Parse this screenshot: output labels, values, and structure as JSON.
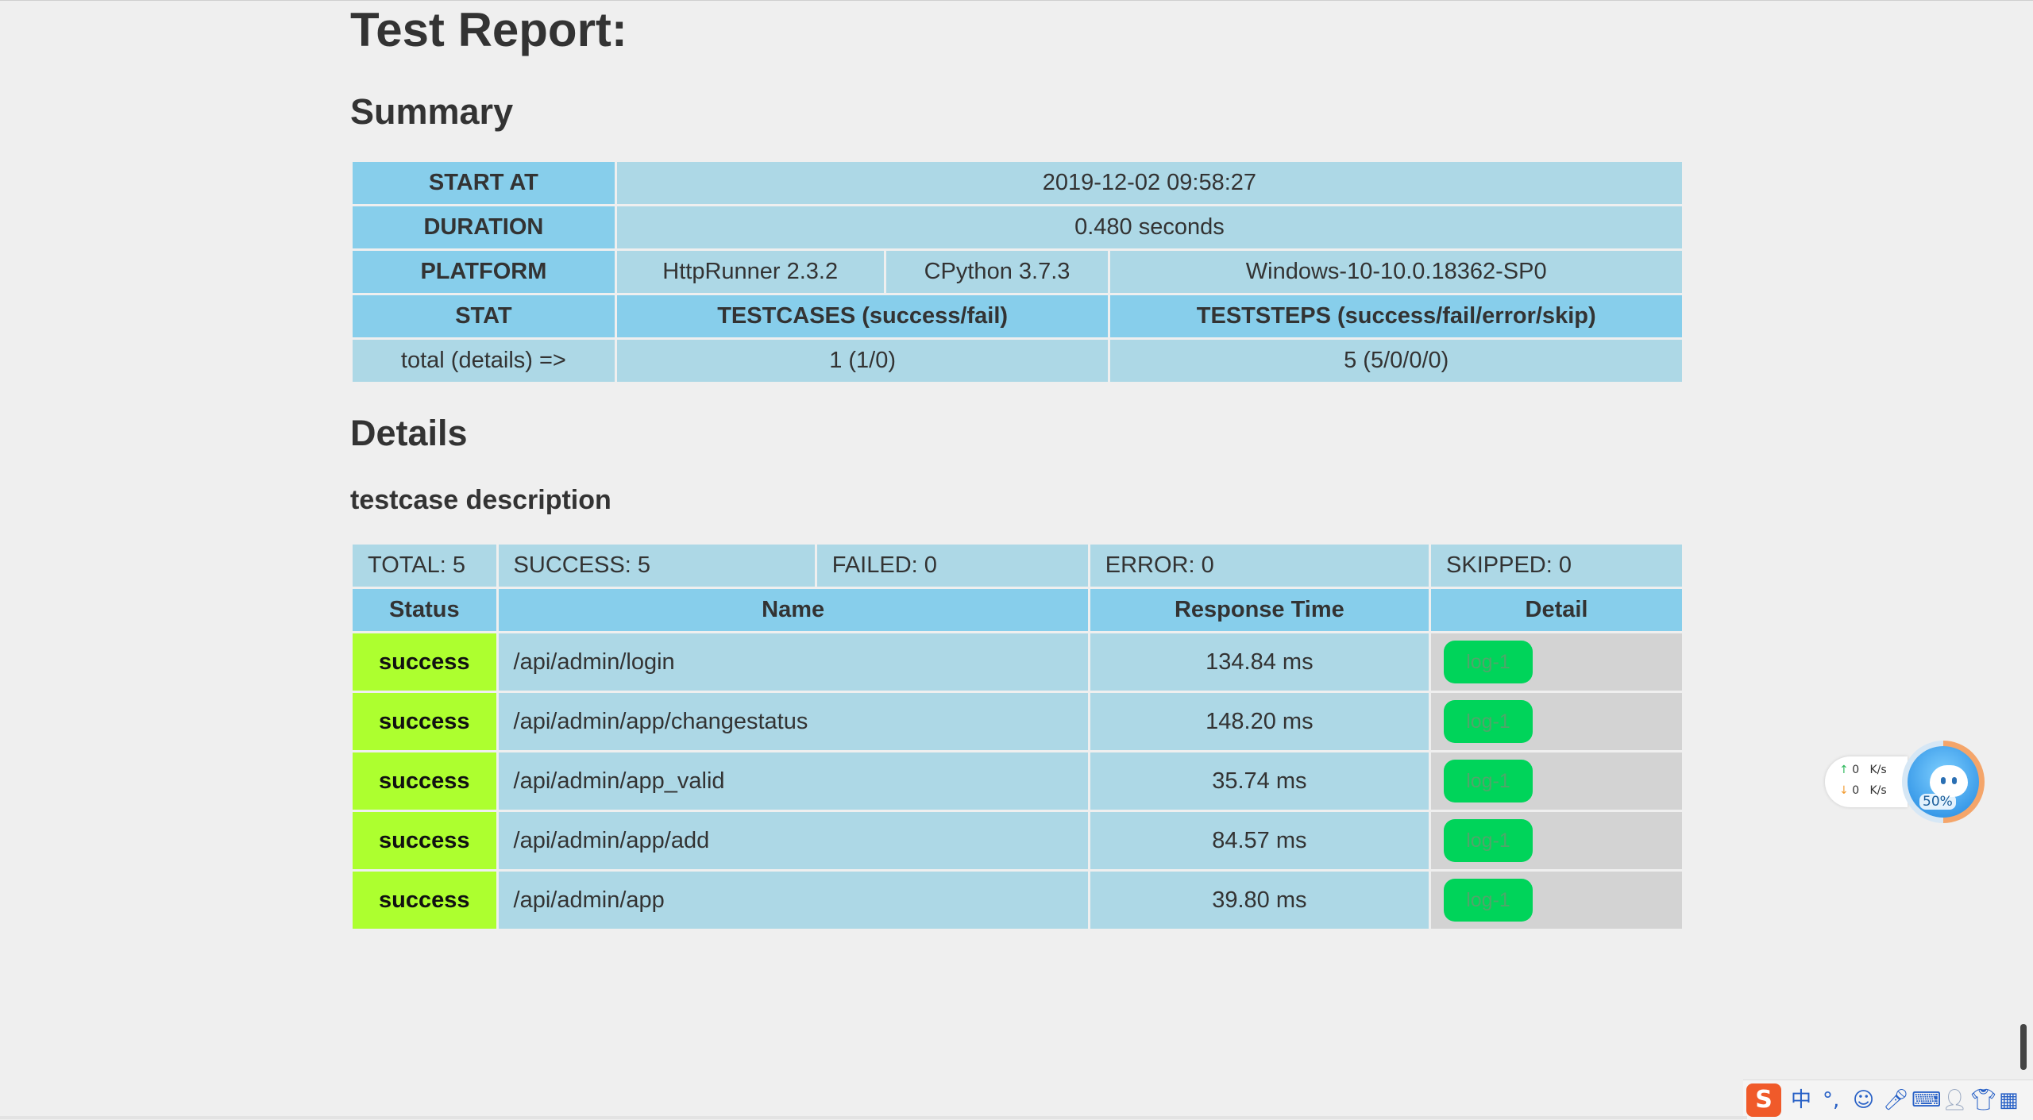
{
  "title": "Test Report:",
  "summary": {
    "heading": "Summary",
    "start_at_label": "START AT",
    "start_at_value": "2019-12-02 09:58:27",
    "duration_label": "DURATION",
    "duration_value": "0.480 seconds",
    "platform_label": "PLATFORM",
    "platform_values": [
      "HttpRunner 2.3.2",
      "CPython 3.7.3",
      "Windows-10-10.0.18362-SP0"
    ],
    "stat_label": "STAT",
    "testcases_label": "TESTCASES (success/fail)",
    "teststeps_label": "TESTSTEPS (success/fail/error/skip)",
    "total_label": "total (details) =>",
    "testcases_value": "1 (1/0)",
    "teststeps_value": "5 (5/0/0/0)"
  },
  "details": {
    "heading": "Details",
    "testcase_name": "testcase description",
    "counts": {
      "total": "TOTAL: 5",
      "success": "SUCCESS: 5",
      "failed": "FAILED: 0",
      "error": "ERROR: 0",
      "skipped": "SKIPPED: 0"
    },
    "columns": [
      "Status",
      "Name",
      "Response Time",
      "Detail"
    ],
    "rows": [
      {
        "status": "success",
        "name": "/api/admin/login",
        "time": "134.84 ms",
        "log": "log-1"
      },
      {
        "status": "success",
        "name": "/api/admin/app/changestatus",
        "time": "148.20 ms",
        "log": "log-1"
      },
      {
        "status": "success",
        "name": "/api/admin/app_valid",
        "time": "35.74 ms",
        "log": "log-1"
      },
      {
        "status": "success",
        "name": "/api/admin/app/add",
        "time": "84.57 ms",
        "log": "log-1"
      },
      {
        "status": "success",
        "name": "/api/admin/app",
        "time": "39.80 ms",
        "log": "log-1"
      }
    ]
  },
  "net_widget": {
    "up_value": "0",
    "up_unit": "K/s",
    "down_value": "0",
    "down_unit": "K/s",
    "percent": "50%"
  },
  "ime": {
    "logo": "S",
    "mode": "中",
    "punct": "°,",
    "icons": [
      "emoji-icon",
      "microphone-icon",
      "keyboard-icon",
      "user-icon",
      "shirt-icon",
      "grid-icon"
    ]
  },
  "colors": {
    "header_bg": "#87ceeb",
    "cell_bg": "#add8e6",
    "success_bg": "#adff2f",
    "detail_bg": "#d3d3d3",
    "log_button_bg": "#00d45a"
  }
}
